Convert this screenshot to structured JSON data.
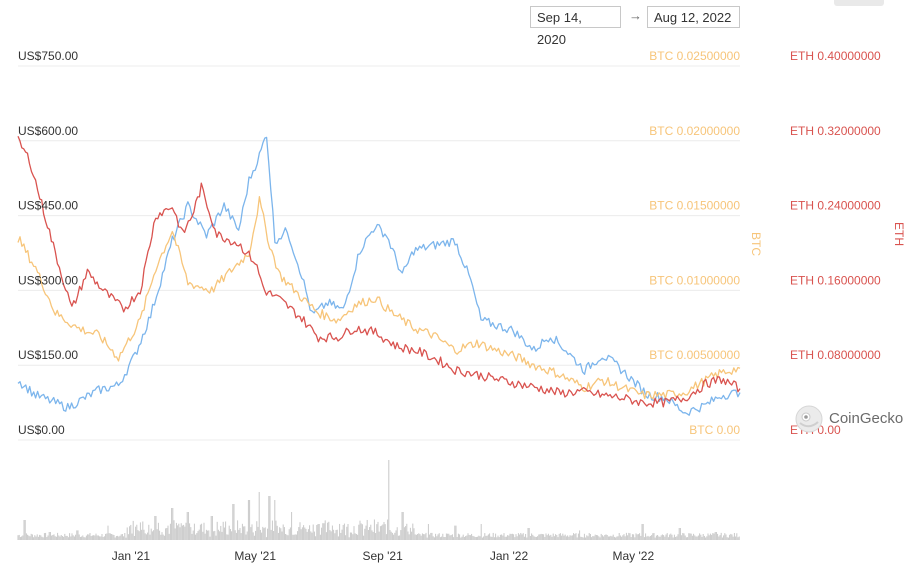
{
  "header": {
    "date_from": "Sep 14, 2020",
    "arrow": "→",
    "date_to": "Aug 12, 2022"
  },
  "watermark": {
    "text": "CoinGecko",
    "icon": "gecko-logo-icon"
  },
  "colors": {
    "usd": "#7cb5ec",
    "btc": "#f7c57a",
    "eth": "#d9534f",
    "grid": "#ececec",
    "volume": "#c8c8c8"
  },
  "chart_data": {
    "type": "line",
    "x_ticks": [
      "Jan '21",
      "May '21",
      "Sep '21",
      "Jan '22",
      "May '22"
    ],
    "x_range": [
      "2020-09-14",
      "2022-08-12"
    ],
    "axes": {
      "usd": {
        "ticks": [
          "US$0.00",
          "US$150.00",
          "US$300.00",
          "US$450.00",
          "US$600.00",
          "US$750.00"
        ],
        "ylim": [
          0,
          750
        ]
      },
      "btc": {
        "label": "BTC",
        "ticks": [
          "BTC 0.00",
          "BTC 0.00500000",
          "BTC 0.01000000",
          "BTC 0.01500000",
          "BTC 0.02000000",
          "BTC 0.02500000"
        ],
        "ylim": [
          0,
          0.025
        ]
      },
      "eth": {
        "label": "ETH",
        "ticks": [
          "ETH 0.00",
          "ETH 0.08000000",
          "ETH 0.16000000",
          "ETH 0.24000000",
          "ETH 0.32000000",
          "ETH 0.40000000"
        ],
        "ylim": [
          0,
          0.4
        ]
      }
    },
    "series": [
      {
        "axis": "usd",
        "points": [
          [
            "2020-09-14",
            120
          ],
          [
            "2020-10-01",
            90
          ],
          [
            "2020-11-01",
            65
          ],
          [
            "2020-12-01",
            100
          ],
          [
            "2020-12-20",
            110
          ],
          [
            "2021-01-05",
            170
          ],
          [
            "2021-01-20",
            250
          ],
          [
            "2021-02-10",
            400
          ],
          [
            "2021-02-25",
            470
          ],
          [
            "2021-03-15",
            410
          ],
          [
            "2021-04-01",
            470
          ],
          [
            "2021-04-15",
            420
          ],
          [
            "2021-04-25",
            520
          ],
          [
            "2021-05-05",
            570
          ],
          [
            "2021-05-12",
            615
          ],
          [
            "2021-05-20",
            400
          ],
          [
            "2021-06-01",
            420
          ],
          [
            "2021-06-15",
            330
          ],
          [
            "2021-06-25",
            250
          ],
          [
            "2021-07-10",
            275
          ],
          [
            "2021-07-25",
            260
          ],
          [
            "2021-08-10",
            380
          ],
          [
            "2021-08-25",
            430
          ],
          [
            "2021-09-05",
            410
          ],
          [
            "2021-09-20",
            330
          ],
          [
            "2021-10-01",
            380
          ],
          [
            "2021-10-20",
            390
          ],
          [
            "2021-11-10",
            400
          ],
          [
            "2021-11-25",
            320
          ],
          [
            "2021-12-05",
            240
          ],
          [
            "2021-12-20",
            230
          ],
          [
            "2022-01-05",
            220
          ],
          [
            "2022-01-25",
            180
          ],
          [
            "2022-02-10",
            210
          ],
          [
            "2022-02-25",
            180
          ],
          [
            "2022-03-15",
            140
          ],
          [
            "2022-04-01",
            170
          ],
          [
            "2022-04-15",
            150
          ],
          [
            "2022-05-05",
            110
          ],
          [
            "2022-05-15",
            90
          ],
          [
            "2022-06-01",
            85
          ],
          [
            "2022-06-20",
            55
          ],
          [
            "2022-07-10",
            70
          ],
          [
            "2022-07-25",
            90
          ],
          [
            "2022-08-12",
            95
          ]
        ]
      },
      {
        "axis": "btc",
        "points": [
          [
            "2020-09-14",
            0.0135
          ],
          [
            "2020-10-01",
            0.0115
          ],
          [
            "2020-10-20",
            0.0085
          ],
          [
            "2020-11-10",
            0.0075
          ],
          [
            "2020-12-01",
            0.007
          ],
          [
            "2020-12-20",
            0.0055
          ],
          [
            "2021-01-10",
            0.008
          ],
          [
            "2021-01-25",
            0.0115
          ],
          [
            "2021-02-10",
            0.014
          ],
          [
            "2021-02-25",
            0.0105
          ],
          [
            "2021-03-20",
            0.01
          ],
          [
            "2021-04-10",
            0.0115
          ],
          [
            "2021-04-25",
            0.0125
          ],
          [
            "2021-05-05",
            0.016
          ],
          [
            "2021-05-15",
            0.013
          ],
          [
            "2021-05-25",
            0.011
          ],
          [
            "2021-06-15",
            0.0095
          ],
          [
            "2021-07-01",
            0.0085
          ],
          [
            "2021-07-20",
            0.008
          ],
          [
            "2021-08-05",
            0.009
          ],
          [
            "2021-08-25",
            0.0095
          ],
          [
            "2021-09-10",
            0.0085
          ],
          [
            "2021-10-01",
            0.0075
          ],
          [
            "2021-10-20",
            0.007
          ],
          [
            "2021-11-10",
            0.006
          ],
          [
            "2021-12-01",
            0.0065
          ],
          [
            "2021-12-20",
            0.006
          ],
          [
            "2022-01-10",
            0.0055
          ],
          [
            "2022-01-25",
            0.005
          ],
          [
            "2022-02-15",
            0.0045
          ],
          [
            "2022-03-15",
            0.0035
          ],
          [
            "2022-04-01",
            0.004
          ],
          [
            "2022-04-20",
            0.0035
          ],
          [
            "2022-05-10",
            0.003
          ],
          [
            "2022-06-01",
            0.003
          ],
          [
            "2022-06-20",
            0.0032
          ],
          [
            "2022-07-10",
            0.004
          ],
          [
            "2022-07-25",
            0.0045
          ],
          [
            "2022-08-12",
            0.0048
          ]
        ]
      },
      {
        "axis": "eth",
        "points": [
          [
            "2020-09-14",
            0.32
          ],
          [
            "2020-09-25",
            0.3
          ],
          [
            "2020-10-05",
            0.26
          ],
          [
            "2020-10-20",
            0.2
          ],
          [
            "2020-11-05",
            0.14
          ],
          [
            "2020-11-20",
            0.18
          ],
          [
            "2020-12-05",
            0.16
          ],
          [
            "2020-12-25",
            0.14
          ],
          [
            "2021-01-10",
            0.16
          ],
          [
            "2021-01-25",
            0.24
          ],
          [
            "2021-02-10",
            0.25
          ],
          [
            "2021-02-20",
            0.22
          ],
          [
            "2021-03-01",
            0.24
          ],
          [
            "2021-03-10",
            0.27
          ],
          [
            "2021-03-25",
            0.22
          ],
          [
            "2021-04-15",
            0.21
          ],
          [
            "2021-05-01",
            0.19
          ],
          [
            "2021-05-10",
            0.16
          ],
          [
            "2021-05-25",
            0.15
          ],
          [
            "2021-06-15",
            0.13
          ],
          [
            "2021-07-01",
            0.11
          ],
          [
            "2021-07-20",
            0.11
          ],
          [
            "2021-08-05",
            0.12
          ],
          [
            "2021-08-25",
            0.115
          ],
          [
            "2021-09-15",
            0.1
          ],
          [
            "2021-10-05",
            0.095
          ],
          [
            "2021-10-25",
            0.085
          ],
          [
            "2021-11-10",
            0.075
          ],
          [
            "2021-12-01",
            0.07
          ],
          [
            "2021-12-20",
            0.065
          ],
          [
            "2022-01-10",
            0.06
          ],
          [
            "2022-02-01",
            0.055
          ],
          [
            "2022-02-20",
            0.05
          ],
          [
            "2022-03-10",
            0.052
          ],
          [
            "2022-04-01",
            0.048
          ],
          [
            "2022-04-20",
            0.045
          ],
          [
            "2022-05-10",
            0.04
          ],
          [
            "2022-06-01",
            0.04
          ],
          [
            "2022-06-20",
            0.045
          ],
          [
            "2022-07-10",
            0.06
          ],
          [
            "2022-07-25",
            0.065
          ],
          [
            "2022-08-12",
            0.055
          ]
        ]
      }
    ],
    "volume": {
      "spikes": [
        [
          "2020-09-20",
          0.25
        ],
        [
          "2020-10-15",
          0.1
        ],
        [
          "2020-11-10",
          0.12
        ],
        [
          "2020-12-10",
          0.18
        ],
        [
          "2021-01-10",
          0.22
        ],
        [
          "2021-01-25",
          0.3
        ],
        [
          "2021-02-10",
          0.4
        ],
        [
          "2021-02-25",
          0.35
        ],
        [
          "2021-03-20",
          0.3
        ],
        [
          "2021-04-10",
          0.45
        ],
        [
          "2021-04-25",
          0.5
        ],
        [
          "2021-05-05",
          0.6
        ],
        [
          "2021-05-15",
          0.55
        ],
        [
          "2021-05-20",
          0.5
        ],
        [
          "2021-06-05",
          0.35
        ],
        [
          "2021-07-01",
          0.2
        ],
        [
          "2021-08-10",
          0.22
        ],
        [
          "2021-09-07",
          1.0
        ],
        [
          "2021-09-20",
          0.35
        ],
        [
          "2021-10-15",
          0.2
        ],
        [
          "2021-11-10",
          0.18
        ],
        [
          "2021-12-05",
          0.2
        ],
        [
          "2022-01-20",
          0.15
        ],
        [
          "2022-03-10",
          0.12
        ],
        [
          "2022-05-10",
          0.2
        ],
        [
          "2022-06-15",
          0.15
        ],
        [
          "2022-07-20",
          0.1
        ]
      ]
    }
  }
}
